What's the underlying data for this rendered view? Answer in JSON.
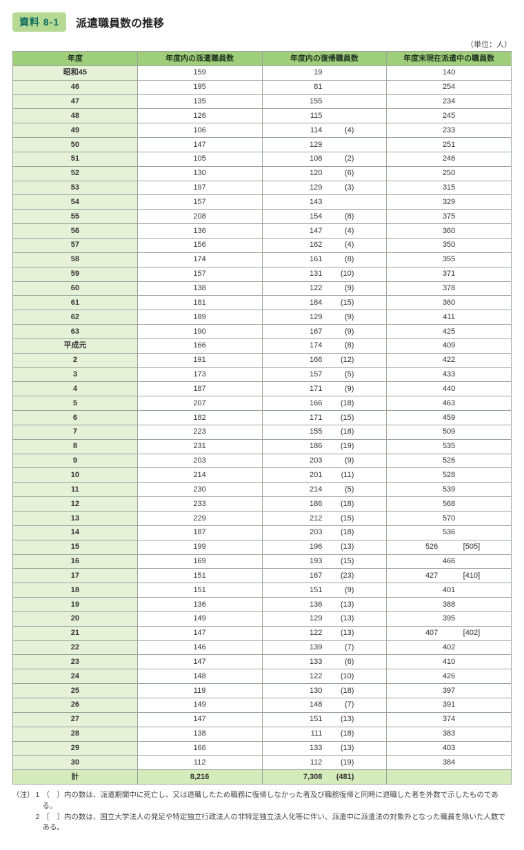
{
  "header": {
    "badge": "資料 8-1",
    "title": "派遣職員数の推移",
    "unit": "（単位：人）"
  },
  "table": {
    "columns": [
      "年度",
      "年度内の派遣職員数",
      "年度内の復帰職員数",
      "年度末現在派遣中の職員数"
    ],
    "rows": [
      {
        "year": "昭和45",
        "disp": "159",
        "ret": "19",
        "ret_p": "",
        "end": "140",
        "end_b": ""
      },
      {
        "year": "46",
        "disp": "195",
        "ret": "81",
        "ret_p": "",
        "end": "254",
        "end_b": ""
      },
      {
        "year": "47",
        "disp": "135",
        "ret": "155",
        "ret_p": "",
        "end": "234",
        "end_b": ""
      },
      {
        "year": "48",
        "disp": "126",
        "ret": "115",
        "ret_p": "",
        "end": "245",
        "end_b": ""
      },
      {
        "year": "49",
        "disp": "106",
        "ret": "114",
        "ret_p": "(4)",
        "end": "233",
        "end_b": ""
      },
      {
        "year": "50",
        "disp": "147",
        "ret": "129",
        "ret_p": "",
        "end": "251",
        "end_b": ""
      },
      {
        "year": "51",
        "disp": "105",
        "ret": "108",
        "ret_p": "(2)",
        "end": "246",
        "end_b": ""
      },
      {
        "year": "52",
        "disp": "130",
        "ret": "120",
        "ret_p": "(6)",
        "end": "250",
        "end_b": ""
      },
      {
        "year": "53",
        "disp": "197",
        "ret": "129",
        "ret_p": "(3)",
        "end": "315",
        "end_b": ""
      },
      {
        "year": "54",
        "disp": "157",
        "ret": "143",
        "ret_p": "",
        "end": "329",
        "end_b": ""
      },
      {
        "year": "55",
        "disp": "208",
        "ret": "154",
        "ret_p": "(8)",
        "end": "375",
        "end_b": ""
      },
      {
        "year": "56",
        "disp": "136",
        "ret": "147",
        "ret_p": "(4)",
        "end": "360",
        "end_b": ""
      },
      {
        "year": "57",
        "disp": "156",
        "ret": "162",
        "ret_p": "(4)",
        "end": "350",
        "end_b": ""
      },
      {
        "year": "58",
        "disp": "174",
        "ret": "161",
        "ret_p": "(8)",
        "end": "355",
        "end_b": ""
      },
      {
        "year": "59",
        "disp": "157",
        "ret": "131",
        "ret_p": "(10)",
        "end": "371",
        "end_b": ""
      },
      {
        "year": "60",
        "disp": "138",
        "ret": "122",
        "ret_p": "(9)",
        "end": "378",
        "end_b": ""
      },
      {
        "year": "61",
        "disp": "181",
        "ret": "184",
        "ret_p": "(15)",
        "end": "360",
        "end_b": ""
      },
      {
        "year": "62",
        "disp": "189",
        "ret": "129",
        "ret_p": "(9)",
        "end": "411",
        "end_b": ""
      },
      {
        "year": "63",
        "disp": "190",
        "ret": "167",
        "ret_p": "(9)",
        "end": "425",
        "end_b": ""
      },
      {
        "year": "平成元",
        "disp": "166",
        "ret": "174",
        "ret_p": "(8)",
        "end": "409",
        "end_b": ""
      },
      {
        "year": "2",
        "disp": "191",
        "ret": "166",
        "ret_p": "(12)",
        "end": "422",
        "end_b": ""
      },
      {
        "year": "3",
        "disp": "173",
        "ret": "157",
        "ret_p": "(5)",
        "end": "433",
        "end_b": ""
      },
      {
        "year": "4",
        "disp": "187",
        "ret": "171",
        "ret_p": "(9)",
        "end": "440",
        "end_b": ""
      },
      {
        "year": "5",
        "disp": "207",
        "ret": "166",
        "ret_p": "(18)",
        "end": "463",
        "end_b": ""
      },
      {
        "year": "6",
        "disp": "182",
        "ret": "171",
        "ret_p": "(15)",
        "end": "459",
        "end_b": ""
      },
      {
        "year": "7",
        "disp": "223",
        "ret": "155",
        "ret_p": "(18)",
        "end": "509",
        "end_b": ""
      },
      {
        "year": "8",
        "disp": "231",
        "ret": "186",
        "ret_p": "(19)",
        "end": "535",
        "end_b": ""
      },
      {
        "year": "9",
        "disp": "203",
        "ret": "203",
        "ret_p": "(9)",
        "end": "526",
        "end_b": ""
      },
      {
        "year": "10",
        "disp": "214",
        "ret": "201",
        "ret_p": "(11)",
        "end": "528",
        "end_b": ""
      },
      {
        "year": "11",
        "disp": "230",
        "ret": "214",
        "ret_p": "(5)",
        "end": "539",
        "end_b": ""
      },
      {
        "year": "12",
        "disp": "233",
        "ret": "186",
        "ret_p": "(18)",
        "end": "568",
        "end_b": ""
      },
      {
        "year": "13",
        "disp": "229",
        "ret": "212",
        "ret_p": "(15)",
        "end": "570",
        "end_b": ""
      },
      {
        "year": "14",
        "disp": "187",
        "ret": "203",
        "ret_p": "(18)",
        "end": "536",
        "end_b": ""
      },
      {
        "year": "15",
        "disp": "199",
        "ret": "196",
        "ret_p": "(13)",
        "end": "526",
        "end_b": "[505]"
      },
      {
        "year": "16",
        "disp": "169",
        "ret": "193",
        "ret_p": "(15)",
        "end": "466",
        "end_b": ""
      },
      {
        "year": "17",
        "disp": "151",
        "ret": "167",
        "ret_p": "(23)",
        "end": "427",
        "end_b": "[410]"
      },
      {
        "year": "18",
        "disp": "151",
        "ret": "151",
        "ret_p": "(9)",
        "end": "401",
        "end_b": ""
      },
      {
        "year": "19",
        "disp": "136",
        "ret": "136",
        "ret_p": "(13)",
        "end": "388",
        "end_b": ""
      },
      {
        "year": "20",
        "disp": "149",
        "ret": "129",
        "ret_p": "(13)",
        "end": "395",
        "end_b": ""
      },
      {
        "year": "21",
        "disp": "147",
        "ret": "122",
        "ret_p": "(13)",
        "end": "407",
        "end_b": "[402]"
      },
      {
        "year": "22",
        "disp": "146",
        "ret": "139",
        "ret_p": "(7)",
        "end": "402",
        "end_b": ""
      },
      {
        "year": "23",
        "disp": "147",
        "ret": "133",
        "ret_p": "(6)",
        "end": "410",
        "end_b": ""
      },
      {
        "year": "24",
        "disp": "148",
        "ret": "122",
        "ret_p": "(10)",
        "end": "426",
        "end_b": ""
      },
      {
        "year": "25",
        "disp": "119",
        "ret": "130",
        "ret_p": "(18)",
        "end": "397",
        "end_b": ""
      },
      {
        "year": "26",
        "disp": "149",
        "ret": "148",
        "ret_p": "(7)",
        "end": "391",
        "end_b": ""
      },
      {
        "year": "27",
        "disp": "147",
        "ret": "151",
        "ret_p": "(13)",
        "end": "374",
        "end_b": ""
      },
      {
        "year": "28",
        "disp": "138",
        "ret": "111",
        "ret_p": "(18)",
        "end": "383",
        "end_b": ""
      },
      {
        "year": "29",
        "disp": "166",
        "ret": "133",
        "ret_p": "(13)",
        "end": "403",
        "end_b": ""
      },
      {
        "year": "30",
        "disp": "112",
        "ret": "112",
        "ret_p": "(19)",
        "end": "384",
        "end_b": ""
      }
    ],
    "total": {
      "year": "計",
      "disp": "8,216",
      "ret": "7,308",
      "ret_p": "(481)",
      "end": "",
      "end_b": ""
    }
  },
  "notes": {
    "label": "（注）",
    "items": [
      {
        "num": "1",
        "text": "（　）内の数は、派遣期間中に死亡し、又は退職したため職務に復帰しなかった者及び職務復帰と同時に退職した者を外数で示したものである。"
      },
      {
        "num": "2",
        "text": "［　］内の数は、国立大学法人の発足や特定独立行政法人の非特定独立法人化等に伴い、派遣中に派遣法の対象外となった職員を除いた人数である。"
      }
    ]
  },
  "style": {
    "badge_bg": "#b6d993",
    "badge_fg": "#0b6a61",
    "header_bg": "#9fcf7a",
    "yearcell_bg": "#e6f2d8",
    "total_bg": "#d5ebbb",
    "border": "#9aa39a",
    "text": "#333333"
  }
}
